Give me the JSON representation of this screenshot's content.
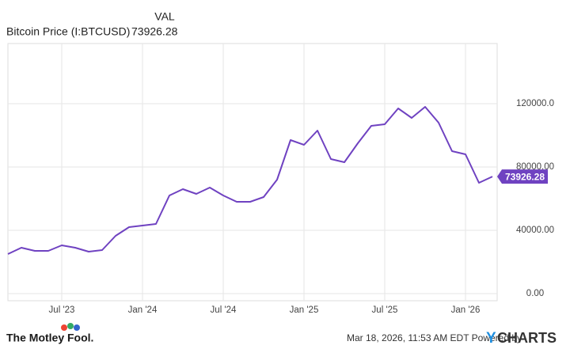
{
  "chart_data": {
    "type": "line",
    "value_header": "VAL",
    "series": [
      {
        "name": "Bitcoin Price (I:BTCUSD)",
        "color": "#6f42c1",
        "values": [
          25000,
          29000,
          27000,
          27000,
          30500,
          29000,
          26500,
          27500,
          36500,
          42000,
          43000,
          44000,
          62000,
          66000,
          63000,
          67000,
          62000,
          58000,
          58000,
          61000,
          72000,
          97000,
          94000,
          103000,
          85000,
          83000,
          95000,
          106000,
          107000,
          117000,
          111000,
          118000,
          108000,
          90000,
          88000,
          70000,
          73926.28
        ]
      }
    ],
    "x": [
      "2023-03",
      "2023-04",
      "2023-05",
      "2023-06",
      "2023-07",
      "2023-08",
      "2023-09",
      "2023-10",
      "2023-11",
      "2023-12",
      "2024-01",
      "2024-02",
      "2024-03",
      "2024-04",
      "2024-05",
      "2024-06",
      "2024-07",
      "2024-08",
      "2024-09",
      "2024-10",
      "2024-11",
      "2024-12",
      "2025-01",
      "2025-02",
      "2025-03",
      "2025-04",
      "2025-05",
      "2025-06",
      "2025-07",
      "2025-08",
      "2025-09",
      "2025-10",
      "2025-11",
      "2025-12",
      "2026-01",
      "2026-02",
      "2026-03"
    ],
    "xlim": [
      "2023-03",
      "2026-03"
    ],
    "xticks": [
      {
        "value": "2023-07",
        "label": "Jul '23"
      },
      {
        "value": "2024-01",
        "label": "Jan '24"
      },
      {
        "value": "2024-07",
        "label": "Jul '24"
      },
      {
        "value": "2025-01",
        "label": "Jan '25"
      },
      {
        "value": "2025-07",
        "label": "Jul '25"
      },
      {
        "value": "2026-01",
        "label": "Jan '26"
      }
    ],
    "ylim": [
      -4500,
      157000
    ],
    "yticks": [
      {
        "value": 0,
        "label": "0.00"
      },
      {
        "value": 40000,
        "label": "40000.00"
      },
      {
        "value": 80000,
        "label": "80000.00"
      },
      {
        "value": 120000,
        "label": "120000.0"
      }
    ],
    "grid": true
  },
  "footer": {
    "brand": "The Motley Fool.",
    "timestamp": "Mar 18, 2026, 11:53 AM EDT  Powered by",
    "provider_y": "Y",
    "provider_rest": "CHARTS"
  }
}
